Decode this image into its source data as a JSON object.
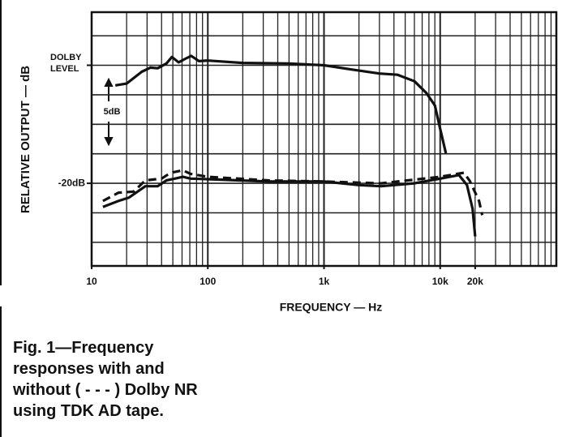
{
  "chart_data": {
    "type": "line",
    "ylabel": "RELATIVE OUTPUT — dB",
    "xlabel": "FREQUENCY — Hz",
    "caption": [
      "Fig. 1—Frequency",
      "responses with and",
      "without ( - - - ) Dolby NR",
      "using TDK AD tape."
    ],
    "annotation": "5dB",
    "log_x": true,
    "grid": true,
    "y_grid_step": 5,
    "xlim": [
      10,
      100000
    ],
    "ylim": [
      -34,
      9
    ],
    "xticks": [
      10,
      100,
      {
        "value": 1000,
        "label": "1k"
      },
      {
        "value": 10000,
        "label": "10k"
      },
      {
        "value": 20000,
        "label": "20k"
      }
    ],
    "yticks": [
      {
        "value": 0,
        "label": "DOLBY LEVEL"
      },
      {
        "value": -20,
        "label": "-20dB"
      }
    ],
    "series": [
      {
        "color": "#111111",
        "style": "solid",
        "x": [
          16,
          20,
          27,
          32,
          37,
          44,
          49,
          56,
          64,
          72,
          84,
          100,
          200,
          500,
          1000,
          1700,
          3000,
          4300,
          6000,
          7600,
          9000,
          10000,
          11200
        ],
        "values": [
          -3.4,
          -3.1,
          -1.1,
          -0.4,
          -0.5,
          0.3,
          1.4,
          0.5,
          1.1,
          1.6,
          0.7,
          0.8,
          0.4,
          0.3,
          0,
          -0.7,
          -1.4,
          -1.6,
          -2.7,
          -4.7,
          -6.8,
          -10.8,
          -14.9
        ]
      },
      {
        "color": "#111111",
        "style": "solid",
        "x": [
          12.5,
          17,
          21,
          29,
          37,
          44,
          52,
          61,
          71,
          100,
          330,
          1000,
          2000,
          3100,
          6000,
          10000,
          14500,
          17000,
          19000,
          20000
        ],
        "values": [
          -24,
          -23,
          -22.4,
          -20.5,
          -20.5,
          -19.5,
          -19.2,
          -18.9,
          -19.2,
          -19.3,
          -19.7,
          -19.7,
          -20.3,
          -20.5,
          -20,
          -19.2,
          -18.6,
          -20.3,
          -24.3,
          -29
        ]
      },
      {
        "color": "#111111",
        "style": "dashed",
        "x": [
          12.5,
          17,
          23,
          29,
          40,
          48,
          61,
          71,
          100,
          330,
          1000,
          3100,
          10000,
          16000,
          18000,
          21600,
          23000
        ],
        "values": [
          -23,
          -21.6,
          -21.4,
          -19.5,
          -19.2,
          -18.2,
          -17.8,
          -18.4,
          -18.9,
          -19.5,
          -19.7,
          -20,
          -18.9,
          -18.2,
          -19.6,
          -23,
          -25.4
        ]
      }
    ]
  }
}
